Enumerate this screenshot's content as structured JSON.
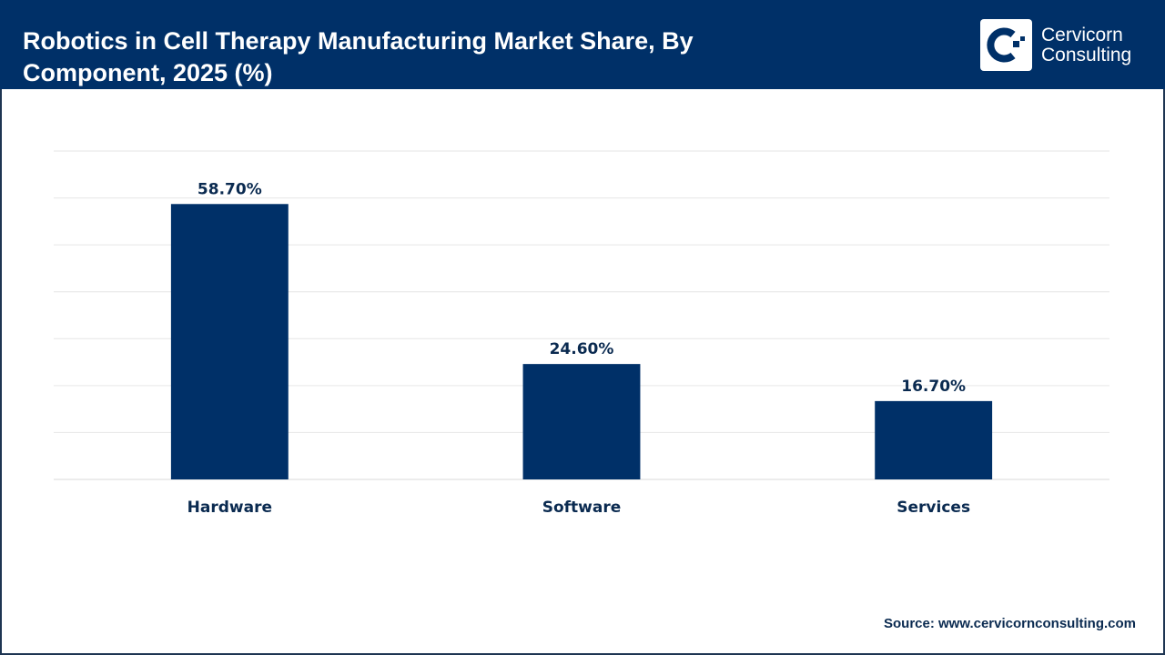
{
  "header": {
    "title": "Robotics in Cell Therapy Manufacturing Market Share, By Component, 2025 (%)",
    "logo_line1": "Cervicorn",
    "logo_line2": "Consulting"
  },
  "colors": {
    "header_bg": "#003068",
    "bar": "#003068",
    "label": "#0a2a50",
    "grid": "#e6e6e6"
  },
  "chart_data": {
    "type": "bar",
    "title": "Robotics in Cell Therapy Manufacturing Market Share, By Component, 2025 (%)",
    "categories": [
      "Hardware",
      "Software",
      "Services"
    ],
    "values": [
      58.7,
      24.6,
      16.7
    ],
    "data_labels": [
      "58.70%",
      "24.60%",
      "16.70%"
    ],
    "ylim": [
      0,
      70
    ],
    "grid": true,
    "y_axis_labels_shown": false,
    "legend": "none"
  },
  "footer": {
    "source": "Source: www.cervicornconsulting.com"
  }
}
